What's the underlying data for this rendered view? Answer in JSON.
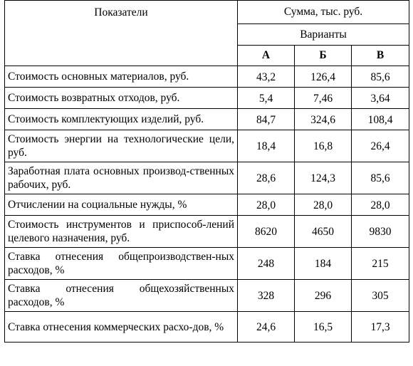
{
  "header": {
    "indicators": "Показатели",
    "sum": "Сумма, тыс. руб.",
    "variants": "Варианты",
    "variant_letters": [
      "А",
      "Б",
      "В"
    ]
  },
  "rows": [
    {
      "label": "Стоимость основных материалов, руб.",
      "values": [
        "43,2",
        "126,4",
        "85,6"
      ]
    },
    {
      "label": "Стоимость возвратных отходов, руб.",
      "values": [
        "5,4",
        "7,46",
        "3,64"
      ]
    },
    {
      "label": "Стоимость комплектующих изделий, руб.",
      "values": [
        "84,7",
        "324,6",
        "108,4"
      ]
    },
    {
      "label": "Стоимость энергии на технологические цели, руб.",
      "values": [
        "18,4",
        "16,8",
        "26,4"
      ]
    },
    {
      "label": "Заработная плата основных производ-ственных рабочих, руб.",
      "values": [
        "28,6",
        "124,3",
        "85,6"
      ]
    },
    {
      "label": "Отчислении на социальные нужды, %",
      "values": [
        "28,0",
        "28,0",
        "28,0"
      ]
    },
    {
      "label": "Стоимость инструментов и приспособ-лений целевого назначения, руб.",
      "values": [
        "8620",
        "4650",
        "9830"
      ]
    },
    {
      "label": "Ставка отнесения общепроизводствен-ных расходов, %",
      "values": [
        "248",
        "184",
        "215"
      ]
    },
    {
      "label": "Ставка отнесения общехозяйственных расходов, %",
      "values": [
        "328",
        "296",
        "305"
      ]
    },
    {
      "label": "Ставка отнесения коммерческих расхо-дов, %",
      "values": [
        "24,6",
        "16,5",
        "17,3"
      ]
    }
  ]
}
